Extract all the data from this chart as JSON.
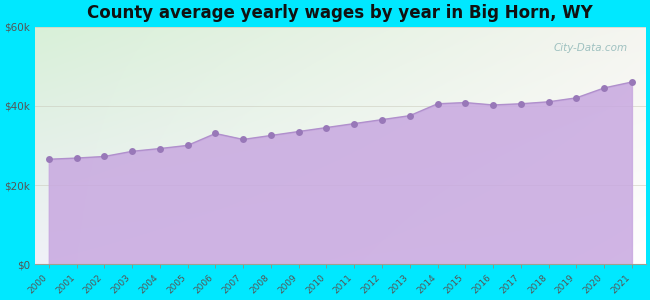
{
  "title": "County average yearly wages by year in Big Horn, WY",
  "years": [
    2000,
    2001,
    2002,
    2003,
    2004,
    2005,
    2006,
    2007,
    2008,
    2009,
    2010,
    2011,
    2012,
    2013,
    2014,
    2015,
    2016,
    2017,
    2018,
    2019,
    2020,
    2021
  ],
  "values": [
    26500,
    26800,
    27200,
    28500,
    29200,
    30000,
    33000,
    31500,
    32500,
    33500,
    34500,
    35500,
    36500,
    37500,
    40500,
    40800,
    40200,
    40500,
    41000,
    42000,
    44500,
    46000
  ],
  "line_color": "#b090cc",
  "fill_color": "#c8a8e0",
  "fill_alpha": 0.85,
  "dot_color": "#9878b8",
  "dot_size": 5,
  "background_outer": "#00e8ff",
  "bg_top_left": "#d8f0d8",
  "bg_top_right": "#f5f5f0",
  "bg_bottom_left": "#f0f0f8",
  "bg_bottom_right": "#ffffff",
  "ylim": [
    0,
    60000
  ],
  "yticks": [
    0,
    20000,
    40000,
    60000
  ],
  "title_fontsize": 12,
  "title_fontweight": "bold",
  "title_color": "#111111",
  "tick_label_color": "#555555",
  "ytick_label_color": "#555555",
  "watermark_text": "City-Data.com",
  "watermark_color": "#90b8b8",
  "grid_color": "#c8c8b8",
  "grid_alpha": 0.6,
  "grid_linewidth": 0.6
}
